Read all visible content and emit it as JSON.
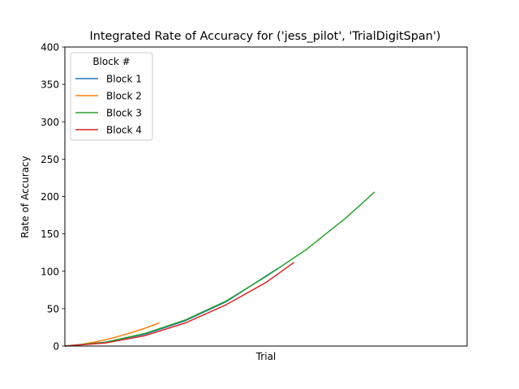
{
  "chart_data": {
    "type": "line",
    "title": "Integrated Rate of Accuracy for ('jess_pilot', 'TrialDigitSpan')",
    "xlabel": "Trial",
    "ylabel": "Rate of Accuracy",
    "xlim": [
      0,
      100
    ],
    "ylim": [
      0,
      400
    ],
    "yticks": [
      0,
      50,
      100,
      150,
      200,
      250,
      300,
      350,
      400
    ],
    "grid": false,
    "legend": {
      "title": "Block #",
      "placement": "top-left"
    },
    "series": [
      {
        "name": "Block 1",
        "color": "#1f77b4",
        "x": [
          0,
          10,
          20,
          30,
          40,
          53
        ],
        "y": [
          0,
          5,
          16,
          34,
          59,
          104
        ]
      },
      {
        "name": "Block 2",
        "color": "#ff7f0e",
        "x": [
          0,
          4,
          8,
          12,
          16,
          20,
          23.5
        ],
        "y": [
          0,
          2,
          6,
          11,
          17,
          24,
          31
        ]
      },
      {
        "name": "Block 3",
        "color": "#2ca02c",
        "x": [
          0,
          10,
          20,
          30,
          40,
          50,
          60,
          70,
          77
        ],
        "y": [
          0,
          5,
          17,
          35,
          60,
          93,
          129,
          172,
          206
        ]
      },
      {
        "name": "Block 4",
        "color": "#d62728",
        "x": [
          0,
          10,
          20,
          30,
          40,
          50,
          57
        ],
        "y": [
          0,
          4,
          14,
          31,
          55,
          85,
          112
        ]
      }
    ]
  }
}
